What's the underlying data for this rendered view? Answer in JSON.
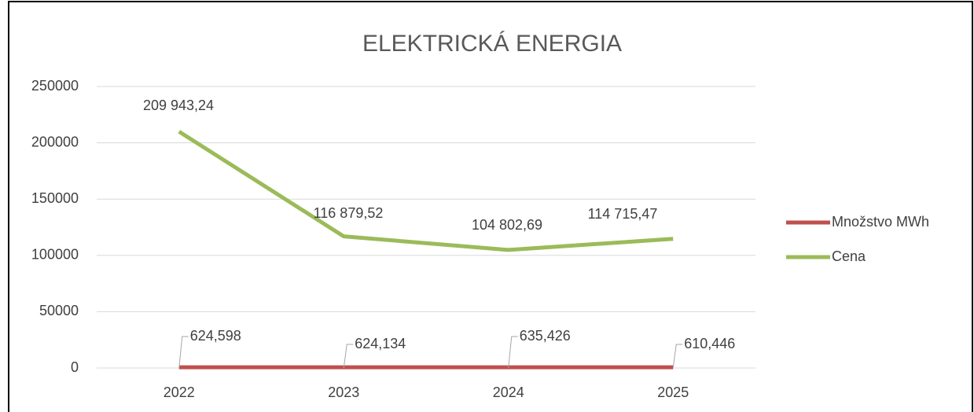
{
  "chart_data": {
    "type": "line",
    "title": "ELEKTRICKÁ ENERGIA",
    "categories": [
      "2022",
      "2023",
      "2024",
      "2025"
    ],
    "series": [
      {
        "name": "Množstvo MWh",
        "color": "#c0504d",
        "values": [
          624.598,
          624.134,
          635.426,
          610.446
        ],
        "value_labels": [
          "624,598",
          "624,134",
          "635,426",
          "610,446"
        ]
      },
      {
        "name": "Cena",
        "color": "#9bbb59",
        "values": [
          209943.24,
          116879.52,
          104802.69,
          114715.47
        ],
        "value_labels": [
          "209 943,24",
          "116 879,52",
          "104 802,69",
          "114 715,47"
        ]
      }
    ],
    "ylim": [
      0,
      250000
    ],
    "yticks": [
      0,
      50000,
      100000,
      150000,
      200000,
      250000
    ],
    "grid": true,
    "legend": "right"
  }
}
